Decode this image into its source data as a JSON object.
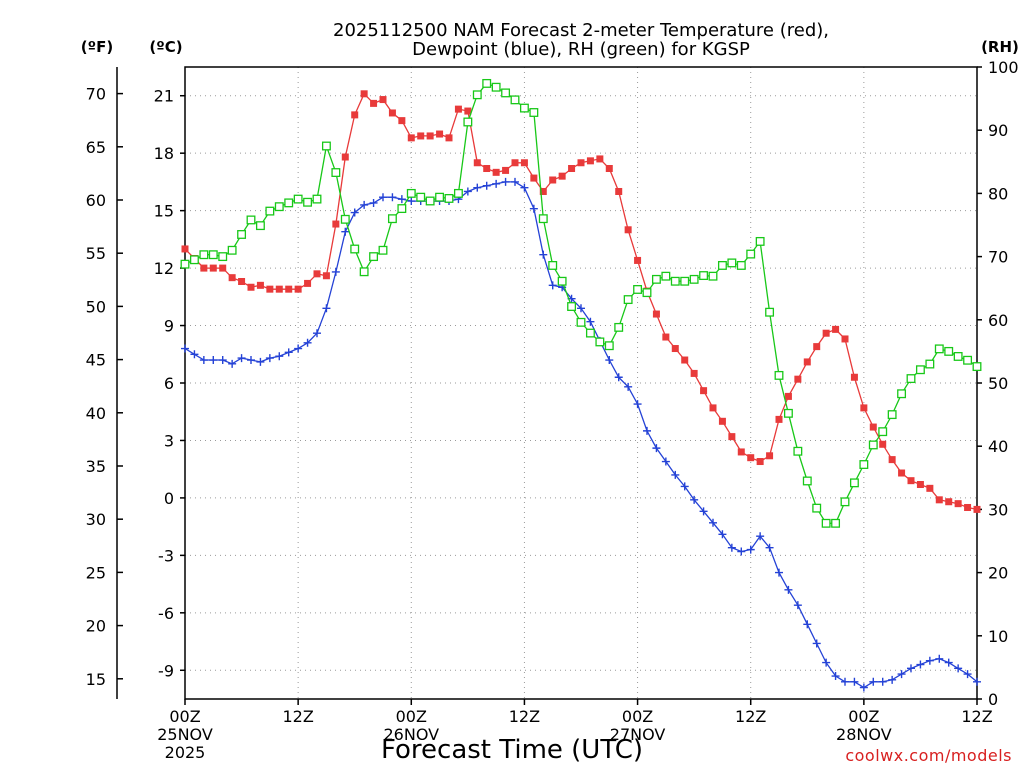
{
  "chart_data": {
    "type": "line",
    "title": [
      "2025112500 NAM Forecast 2-meter Temperature (red),",
      "Dewpoint (blue), RH (green) for KGSP"
    ],
    "xlabel": "Forecast Time (UTC)",
    "watermark": "coolwx.com/models",
    "units": {
      "fahrenheit": "(ºF)",
      "celsius": "(ºC)",
      "rh": "(RH)"
    },
    "x_range_hours": [
      0,
      84
    ],
    "x_ticks": [
      {
        "hour": 0,
        "lines": [
          "00Z",
          "25NOV",
          "2025"
        ]
      },
      {
        "hour": 12,
        "lines": [
          "12Z"
        ]
      },
      {
        "hour": 24,
        "lines": [
          "00Z",
          "26NOV"
        ]
      },
      {
        "hour": 36,
        "lines": [
          "12Z"
        ]
      },
      {
        "hour": 48,
        "lines": [
          "00Z",
          "27NOV"
        ]
      },
      {
        "hour": 60,
        "lines": [
          "12Z"
        ]
      },
      {
        "hour": 72,
        "lines": [
          "00Z",
          "28NOV"
        ]
      },
      {
        "hour": 84,
        "lines": [
          "12Z"
        ]
      }
    ],
    "celsius_range": [
      -10.5,
      22.5
    ],
    "celsius_ticks": [
      "-9",
      "-6",
      "-3",
      "0",
      "3",
      "6",
      "9",
      "12",
      "15",
      "18",
      "21"
    ],
    "fahrenheit_ticks": [
      "15",
      "20",
      "25",
      "30",
      "35",
      "40",
      "45",
      "50",
      "55",
      "60",
      "65",
      "70"
    ],
    "rh_range": [
      0,
      100
    ],
    "rh_ticks": [
      "0",
      "10",
      "20",
      "30",
      "40",
      "50",
      "60",
      "70",
      "80",
      "90",
      "100"
    ],
    "series": [
      {
        "name": "Temperature",
        "axis": "celsius",
        "color": "#e83a3a",
        "marker": "filled-square",
        "x": [
          0,
          1,
          2,
          3,
          4,
          5,
          6,
          7,
          8,
          9,
          10,
          11,
          12,
          13,
          14,
          15,
          16,
          17,
          18,
          19,
          20,
          21,
          22,
          23,
          24,
          25,
          26,
          27,
          28,
          29,
          30,
          31,
          32,
          33,
          34,
          35,
          36,
          37,
          38,
          39,
          40,
          41,
          42,
          43,
          44,
          45,
          46,
          47,
          48,
          49,
          50,
          51,
          52,
          53,
          54,
          55,
          56,
          57,
          58,
          59,
          60,
          61,
          62,
          63,
          64,
          65,
          66,
          67,
          68,
          69,
          70,
          71,
          72,
          73,
          74,
          75,
          76,
          77,
          78,
          79,
          80,
          81,
          82,
          83,
          84
        ],
        "y": [
          13.0,
          12.5,
          12.0,
          12.0,
          12.0,
          11.5,
          11.3,
          11.0,
          11.1,
          10.9,
          10.9,
          10.9,
          10.9,
          11.2,
          11.7,
          11.6,
          14.3,
          17.8,
          20.0,
          21.1,
          20.6,
          20.8,
          20.1,
          19.7,
          18.8,
          18.9,
          18.9,
          19.0,
          18.8,
          20.3,
          20.2,
          17.5,
          17.2,
          17.0,
          17.1,
          17.5,
          17.5,
          16.7,
          16.0,
          16.6,
          16.8,
          17.2,
          17.5,
          17.6,
          17.7,
          17.2,
          16.0,
          14.0,
          12.4,
          10.8,
          9.6,
          8.4,
          7.8,
          7.2,
          6.5,
          5.6,
          4.7,
          4.0,
          3.2,
          2.4,
          2.1,
          1.9,
          2.2,
          4.1,
          5.3,
          6.2,
          7.1,
          7.9,
          8.6,
          8.8,
          8.3,
          6.3,
          4.7,
          3.7,
          2.8,
          2.0,
          1.3,
          0.9,
          0.7,
          0.5,
          -0.1,
          -0.2,
          -0.3,
          -0.5,
          -0.6
        ]
      },
      {
        "name": "Dewpoint",
        "axis": "celsius",
        "color": "#2442d6",
        "marker": "plus",
        "x": [
          0,
          1,
          2,
          3,
          4,
          5,
          6,
          7,
          8,
          9,
          10,
          11,
          12,
          13,
          14,
          15,
          16,
          17,
          18,
          19,
          20,
          21,
          22,
          23,
          24,
          25,
          26,
          27,
          28,
          29,
          30,
          31,
          32,
          33,
          34,
          35,
          36,
          37,
          38,
          39,
          40,
          41,
          42,
          43,
          44,
          45,
          46,
          47,
          48,
          49,
          50,
          51,
          52,
          53,
          54,
          55,
          56,
          57,
          58,
          59,
          60,
          61,
          62,
          63,
          64,
          65,
          66,
          67,
          68,
          69,
          70,
          71,
          72,
          73,
          74,
          75,
          76,
          77,
          78,
          79,
          80,
          81,
          82,
          83,
          84
        ],
        "y": [
          7.8,
          7.5,
          7.2,
          7.2,
          7.2,
          7.0,
          7.3,
          7.2,
          7.1,
          7.3,
          7.4,
          7.6,
          7.8,
          8.1,
          8.6,
          9.9,
          11.8,
          13.9,
          14.9,
          15.3,
          15.4,
          15.7,
          15.7,
          15.6,
          15.5,
          15.5,
          15.5,
          15.5,
          15.5,
          15.6,
          16.0,
          16.2,
          16.3,
          16.4,
          16.5,
          16.5,
          16.2,
          15.1,
          12.7,
          11.1,
          11.0,
          10.4,
          9.9,
          9.2,
          8.2,
          7.2,
          6.3,
          5.8,
          4.9,
          3.5,
          2.6,
          1.9,
          1.2,
          0.6,
          -0.1,
          -0.7,
          -1.3,
          -1.9,
          -2.6,
          -2.8,
          -2.7,
          -2.0,
          -2.6,
          -3.9,
          -4.8,
          -5.6,
          -6.6,
          -7.6,
          -8.6,
          -9.3,
          -9.6,
          -9.6,
          -9.9,
          -9.6,
          -9.6,
          -9.5,
          -9.2,
          -8.9,
          -8.7,
          -8.5,
          -8.4,
          -8.6,
          -8.9,
          -9.2,
          -9.6
        ]
      },
      {
        "name": "RH",
        "axis": "rh",
        "color": "#18c818",
        "marker": "open-square",
        "x": [
          0,
          1,
          2,
          3,
          4,
          5,
          6,
          7,
          8,
          9,
          10,
          11,
          12,
          13,
          14,
          15,
          16,
          17,
          18,
          19,
          20,
          21,
          22,
          23,
          24,
          25,
          26,
          27,
          28,
          29,
          30,
          31,
          32,
          33,
          34,
          35,
          36,
          37,
          38,
          39,
          40,
          41,
          42,
          43,
          44,
          45,
          46,
          47,
          48,
          49,
          50,
          51,
          52,
          53,
          54,
          55,
          56,
          57,
          58,
          59,
          60,
          61,
          62,
          63,
          64,
          65,
          66,
          67,
          68,
          69,
          70,
          71,
          72,
          73,
          74,
          75,
          76,
          77,
          78,
          79,
          80,
          81,
          82,
          83,
          84
        ],
        "y": [
          68.8,
          69.5,
          70.3,
          70.3,
          70.0,
          71.0,
          73.5,
          75.8,
          74.9,
          77.2,
          77.9,
          78.5,
          79.1,
          78.6,
          79.1,
          87.5,
          83.3,
          75.9,
          71.2,
          67.6,
          70.0,
          71.0,
          76.0,
          77.6,
          80.0,
          79.4,
          78.8,
          79.4,
          79.2,
          80.0,
          91.3,
          95.6,
          97.4,
          96.8,
          95.9,
          94.8,
          93.5,
          92.8,
          76.0,
          68.6,
          66.1,
          62.1,
          59.6,
          57.9,
          56.5,
          55.9,
          58.8,
          63.2,
          64.8,
          64.3,
          66.4,
          66.9,
          66.1,
          66.1,
          66.4,
          67.0,
          66.9,
          68.6,
          69.0,
          68.6,
          70.4,
          72.4,
          61.2,
          51.2,
          45.2,
          39.2,
          34.5,
          30.2,
          27.8,
          27.8,
          31.2,
          34.2,
          37.1,
          40.2,
          42.3,
          45.0,
          48.3,
          50.7,
          52.1,
          53.0,
          55.4,
          55.0,
          54.2,
          53.6,
          52.6
        ]
      }
    ]
  }
}
